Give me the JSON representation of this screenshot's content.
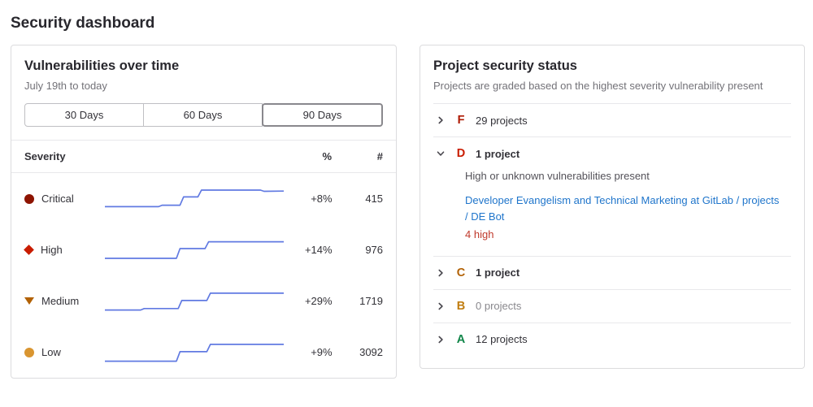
{
  "page": {
    "title": "Security dashboard"
  },
  "colors": {
    "sparkline": "#617ae2",
    "link": "#1f75cb",
    "danger_text": "#c0392b",
    "severity": {
      "critical": "#8d1300",
      "high": "#c91c00",
      "medium": "#b26104",
      "low": "#d99530"
    }
  },
  "vuln_panel": {
    "title": "Vulnerabilities over time",
    "subtitle": "July 19th to today",
    "filters": [
      {
        "label": "30 Days",
        "selected": false
      },
      {
        "label": "60 Days",
        "selected": false
      },
      {
        "label": "90 Days",
        "selected": true
      }
    ],
    "columns": {
      "severity": "Severity",
      "percent": "%",
      "count": "#"
    },
    "rows": [
      {
        "label": "Critical",
        "icon": "critical",
        "percent": "+8%",
        "count": "415",
        "sparkline": [
          [
            0,
            0.12
          ],
          [
            30,
            0.12
          ],
          [
            32,
            0.18
          ],
          [
            42,
            0.18
          ],
          [
            44,
            0.52
          ],
          [
            52,
            0.52
          ],
          [
            54,
            0.8
          ],
          [
            87,
            0.8
          ],
          [
            89,
            0.75
          ],
          [
            100,
            0.76
          ]
        ]
      },
      {
        "label": "High",
        "icon": "high",
        "percent": "+14%",
        "count": "976",
        "sparkline": [
          [
            0,
            0.1
          ],
          [
            40,
            0.1
          ],
          [
            42,
            0.5
          ],
          [
            56,
            0.5
          ],
          [
            58,
            0.78
          ],
          [
            100,
            0.78
          ]
        ]
      },
      {
        "label": "Medium",
        "icon": "medium",
        "percent": "+29%",
        "count": "1719",
        "sparkline": [
          [
            0,
            0.08
          ],
          [
            20,
            0.08
          ],
          [
            22,
            0.14
          ],
          [
            41,
            0.14
          ],
          [
            43,
            0.47
          ],
          [
            57,
            0.47
          ],
          [
            59,
            0.77
          ],
          [
            100,
            0.77
          ]
        ]
      },
      {
        "label": "Low",
        "icon": "low",
        "percent": "+9%",
        "count": "3092",
        "sparkline": [
          [
            0,
            0.08
          ],
          [
            40,
            0.08
          ],
          [
            42,
            0.47
          ],
          [
            57,
            0.47
          ],
          [
            59,
            0.77
          ],
          [
            100,
            0.77
          ]
        ]
      }
    ]
  },
  "status_panel": {
    "title": "Project security status",
    "subtitle": "Projects are graded based on the highest severity vulnerability present",
    "rows": [
      {
        "grade": "F",
        "color": "#ae1800",
        "text": "29 projects",
        "expanded": false,
        "bold": false,
        "muted": false
      },
      {
        "grade": "D",
        "color": "#c91c00",
        "text": "1 project",
        "expanded": true,
        "bold": true,
        "muted": false,
        "description": "High or unknown vulnerabilities present",
        "project_link": "Developer Evangelism and Technical Marketing at GitLab / projects / DE Bot",
        "vulnerability_count": "4 high"
      },
      {
        "grade": "C",
        "color": "#b26104",
        "text": "1 project",
        "expanded": false,
        "bold": true,
        "muted": false
      },
      {
        "grade": "B",
        "color": "#c17d10",
        "text": "0 projects",
        "expanded": false,
        "bold": false,
        "muted": true
      },
      {
        "grade": "A",
        "color": "#108548",
        "text": "12 projects",
        "expanded": false,
        "bold": false,
        "muted": false
      }
    ]
  },
  "chart_data": [
    {
      "type": "line",
      "name": "Critical",
      "title": "Critical vulnerabilities sparkline",
      "x": "time (July 19th to today, 90 days)",
      "y": "relative count (0-1)",
      "grid": false,
      "legend": "none",
      "points": [
        [
          0,
          0.12
        ],
        [
          30,
          0.12
        ],
        [
          32,
          0.18
        ],
        [
          42,
          0.18
        ],
        [
          44,
          0.52
        ],
        [
          52,
          0.52
        ],
        [
          54,
          0.8
        ],
        [
          87,
          0.8
        ],
        [
          89,
          0.75
        ],
        [
          100,
          0.76
        ]
      ],
      "change_percent": "+8%",
      "current_count": 415
    },
    {
      "type": "line",
      "name": "High",
      "title": "High vulnerabilities sparkline",
      "x": "time (July 19th to today, 90 days)",
      "y": "relative count (0-1)",
      "grid": false,
      "legend": "none",
      "points": [
        [
          0,
          0.1
        ],
        [
          40,
          0.1
        ],
        [
          42,
          0.5
        ],
        [
          56,
          0.5
        ],
        [
          58,
          0.78
        ],
        [
          100,
          0.78
        ]
      ],
      "change_percent": "+14%",
      "current_count": 976
    },
    {
      "type": "line",
      "name": "Medium",
      "title": "Medium vulnerabilities sparkline",
      "x": "time (July 19th to today, 90 days)",
      "y": "relative count (0-1)",
      "grid": false,
      "legend": "none",
      "points": [
        [
          0,
          0.08
        ],
        [
          20,
          0.08
        ],
        [
          22,
          0.14
        ],
        [
          41,
          0.14
        ],
        [
          43,
          0.47
        ],
        [
          57,
          0.47
        ],
        [
          59,
          0.77
        ],
        [
          100,
          0.77
        ]
      ],
      "change_percent": "+29%",
      "current_count": 1719
    },
    {
      "type": "line",
      "name": "Low",
      "title": "Low vulnerabilities sparkline",
      "x": "time (July 19th to today, 90 days)",
      "y": "relative count (0-1)",
      "grid": false,
      "legend": "none",
      "points": [
        [
          0,
          0.08
        ],
        [
          40,
          0.08
        ],
        [
          42,
          0.47
        ],
        [
          57,
          0.47
        ],
        [
          59,
          0.77
        ],
        [
          100,
          0.77
        ]
      ],
      "change_percent": "+9%",
      "current_count": 3092
    }
  ]
}
